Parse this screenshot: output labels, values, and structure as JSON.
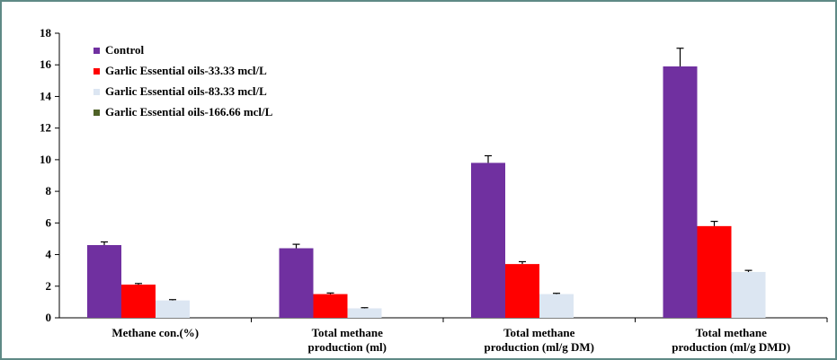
{
  "chart_data": {
    "type": "bar",
    "categories": [
      [
        "Methane con.(%)"
      ],
      [
        "Total methane",
        "production (ml)"
      ],
      [
        "Total methane",
        "production (ml/g DM)"
      ],
      [
        "Total methane",
        "production (ml/g DMD)"
      ]
    ],
    "series": [
      {
        "name": "Control",
        "color": "#7030a0",
        "values": [
          4.6,
          4.4,
          9.8,
          15.9
        ],
        "errors": [
          0.2,
          0.25,
          0.45,
          1.15
        ]
      },
      {
        "name": "Garlic Essential oils-33.33 mcl/L",
        "color": "#ff0000",
        "values": [
          2.1,
          1.5,
          3.4,
          5.8
        ],
        "errors": [
          0.07,
          0.07,
          0.15,
          0.3
        ]
      },
      {
        "name": "Garlic Essential oils-83.33 mcl/L",
        "color": "#dce6f2",
        "values": [
          1.1,
          0.6,
          1.5,
          2.9
        ],
        "errors": [
          0.05,
          0.04,
          0.05,
          0.1
        ]
      },
      {
        "name": "Garlic Essential oils-166.66 mcl/L",
        "color": "#4f6228",
        "values": [
          0,
          0,
          0,
          0
        ],
        "errors": [
          0,
          0,
          0,
          0
        ]
      }
    ],
    "yticks": [
      0,
      2,
      4,
      6,
      8,
      10,
      12,
      14,
      16,
      18
    ],
    "ylim": [
      0,
      18
    ],
    "legend_position": "top-left",
    "grid": false
  }
}
